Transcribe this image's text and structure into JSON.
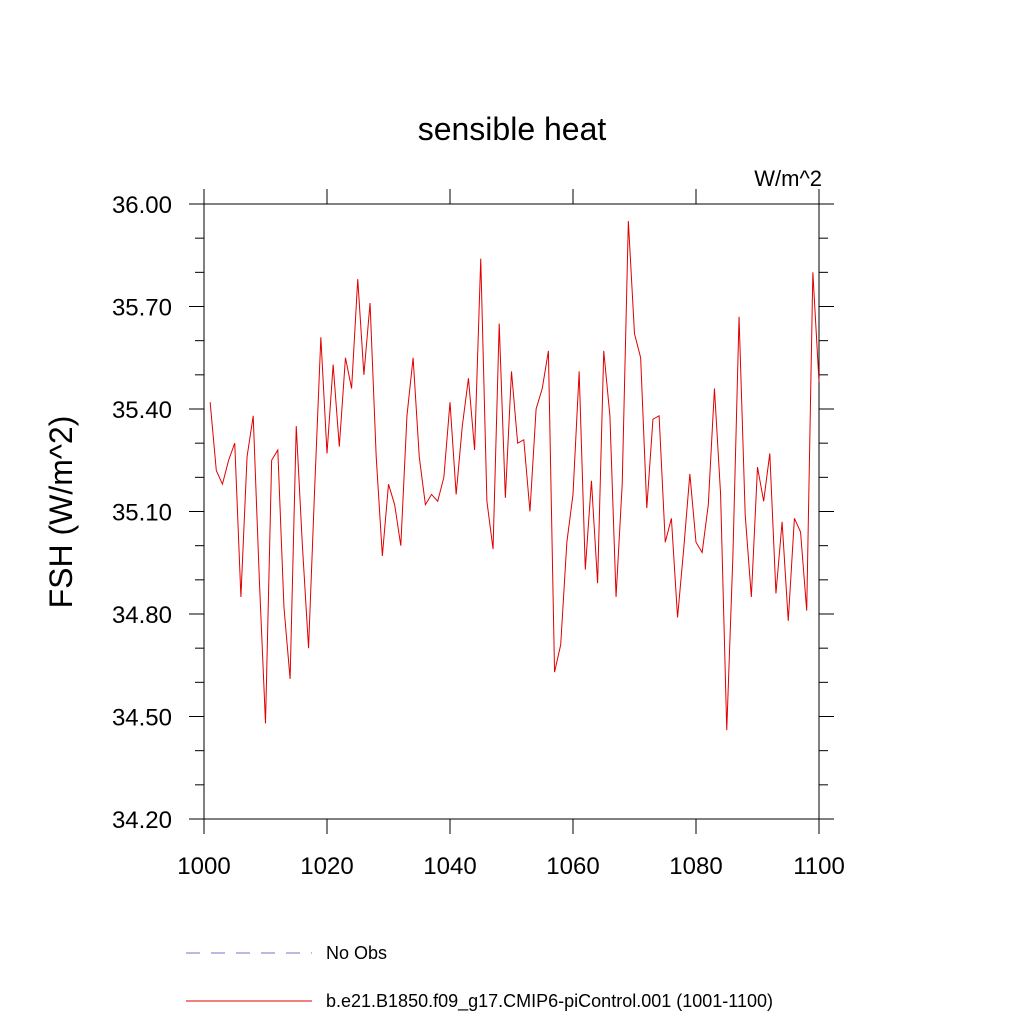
{
  "chart_data": {
    "type": "line",
    "title": "sensible heat",
    "units_label": "W/m^2",
    "xlabel": "",
    "ylabel": "FSH  (W/m^2)",
    "xlim": [
      1000,
      1100
    ],
    "ylim": [
      34.2,
      36.0
    ],
    "x_ticks": [
      1000,
      1020,
      1040,
      1060,
      1080,
      1100
    ],
    "x_tick_labels": [
      "1000",
      "1020",
      "1040",
      "1060",
      "1080",
      "1100"
    ],
    "y_ticks": [
      34.2,
      34.5,
      34.8,
      35.1,
      35.4,
      35.7,
      36.0
    ],
    "y_tick_labels": [
      "34.20",
      "34.50",
      "34.80",
      "35.10",
      "35.40",
      "35.70",
      "36.00"
    ],
    "grid": false,
    "legend": [
      {
        "label": "No Obs",
        "style": "dashed",
        "color": "#7b70c7"
      },
      {
        "label": "b.e21.B1850.f09_g17.CMIP6-piControl.001 (1001-1100)",
        "style": "solid",
        "color": "#e00000"
      }
    ],
    "series": [
      {
        "name": "b.e21.B1850.f09_g17.CMIP6-piControl.001 (1001-1100)",
        "color": "#e00000",
        "x_start": 1001,
        "x_step": 1,
        "values": [
          35.42,
          35.22,
          35.18,
          35.25,
          35.3,
          34.85,
          35.26,
          35.38,
          34.9,
          34.48,
          35.25,
          35.28,
          34.82,
          34.61,
          35.35,
          35.0,
          34.7,
          35.17,
          35.61,
          35.27,
          35.53,
          35.29,
          35.55,
          35.46,
          35.78,
          35.5,
          35.71,
          35.26,
          34.97,
          35.18,
          35.12,
          35.0,
          35.38,
          35.55,
          35.26,
          35.12,
          35.15,
          35.13,
          35.2,
          35.42,
          35.15,
          35.35,
          35.49,
          35.28,
          35.84,
          35.13,
          34.99,
          35.65,
          35.14,
          35.51,
          35.3,
          35.31,
          35.1,
          35.4,
          35.46,
          35.57,
          34.63,
          34.71,
          35.01,
          35.15,
          35.51,
          34.93,
          35.19,
          34.89,
          35.57,
          35.38,
          34.85,
          35.18,
          35.95,
          35.62,
          35.55,
          35.11,
          35.37,
          35.38,
          35.01,
          35.08,
          34.79,
          34.99,
          35.21,
          35.01,
          34.98,
          35.12,
          35.46,
          35.15,
          34.46,
          34.97,
          35.67,
          35.09,
          34.85,
          35.23,
          35.13,
          35.27,
          34.86,
          35.07,
          34.78,
          35.08,
          35.04,
          34.81,
          35.8,
          35.48
        ]
      }
    ]
  }
}
